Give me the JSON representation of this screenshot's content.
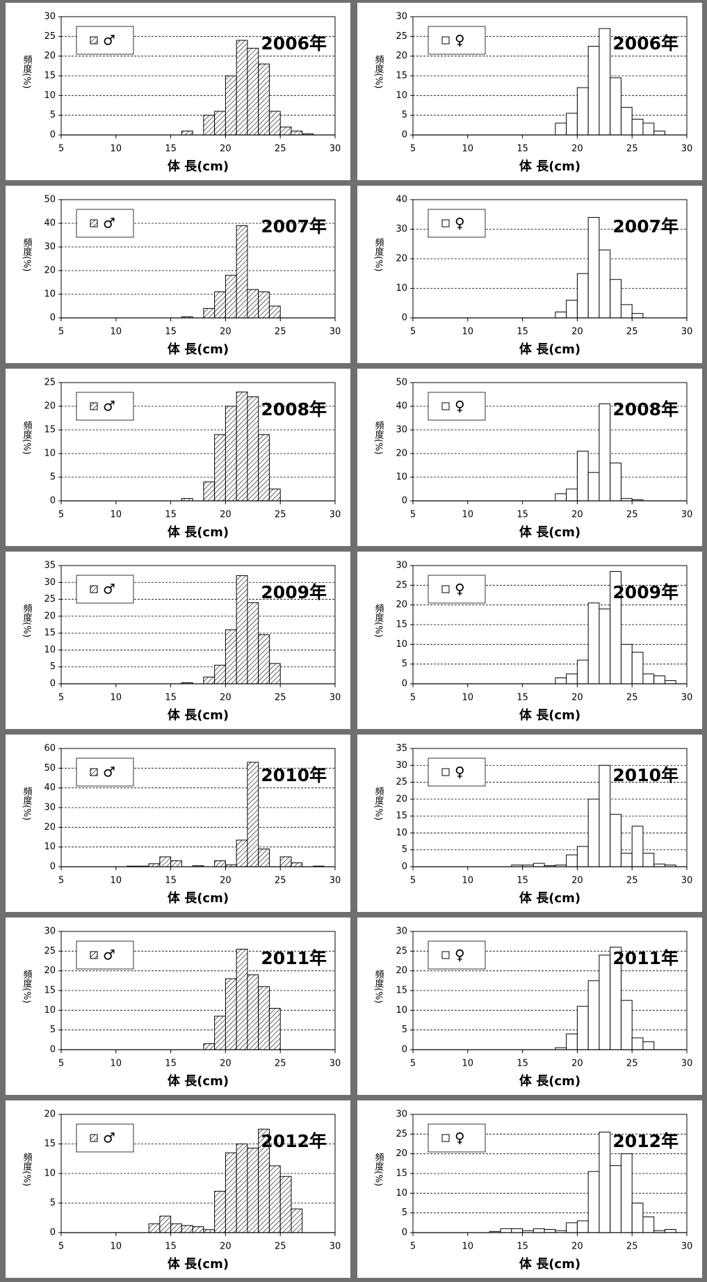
{
  "chart_data": [
    {
      "type": "histogram",
      "annotation": "2006年",
      "xlabel": "体 長(cm)",
      "ylabel": "頻度(%)",
      "bins": [
        16,
        17,
        18,
        19,
        20,
        21,
        22,
        23,
        24,
        25,
        26,
        27,
        28
      ],
      "series": [
        {
          "name": "♂",
          "color": "#ffffff",
          "hatch": true,
          "values": [
            1,
            0,
            5,
            6,
            15,
            24,
            22,
            18,
            6,
            2,
            1,
            0.3
          ]
        }
      ],
      "xlim": [
        5,
        30
      ],
      "xticks": [
        5,
        10,
        15,
        20,
        25,
        30
      ],
      "ylim": [
        0,
        30
      ],
      "yticks": [
        0,
        5,
        10,
        15,
        20,
        25,
        30
      ],
      "grid": true
    },
    {
      "type": "histogram",
      "annotation": "2006年",
      "xlabel": "体 長(cm)",
      "ylabel": "頻度(%)",
      "bins": [
        18,
        19,
        20,
        21,
        22,
        23,
        24,
        25,
        26,
        27,
        28
      ],
      "series": [
        {
          "name": "♀",
          "color": "#ffffff",
          "hatch": false,
          "values": [
            3,
            5.5,
            12,
            22.5,
            27,
            14.5,
            7,
            4,
            3,
            1
          ]
        }
      ],
      "xlim": [
        5,
        30
      ],
      "xticks": [
        5,
        10,
        15,
        20,
        25,
        30
      ],
      "ylim": [
        0,
        30
      ],
      "yticks": [
        0,
        5,
        10,
        15,
        20,
        25,
        30
      ],
      "grid": true
    },
    {
      "type": "histogram",
      "annotation": "2007年",
      "xlabel": "体 長(cm)",
      "ylabel": "頻度(%)",
      "bins": [
        16,
        17,
        18,
        19,
        20,
        21,
        22,
        23,
        24,
        25
      ],
      "series": [
        {
          "name": "♂",
          "color": "#ffffff",
          "hatch": true,
          "values": [
            0.5,
            0,
            4,
            11,
            18,
            39,
            12,
            11,
            5
          ]
        }
      ],
      "xlim": [
        5,
        30
      ],
      "xticks": [
        5,
        10,
        15,
        20,
        25,
        30
      ],
      "ylim": [
        0,
        50
      ],
      "yticks": [
        0,
        10,
        20,
        30,
        40,
        50
      ],
      "grid": true
    },
    {
      "type": "histogram",
      "annotation": "2007年",
      "xlabel": "体 長(cm)",
      "ylabel": "頻度(%)",
      "bins": [
        18,
        19,
        20,
        21,
        22,
        23,
        24,
        25,
        26
      ],
      "series": [
        {
          "name": "♀",
          "color": "#ffffff",
          "hatch": false,
          "values": [
            2,
            6,
            15,
            34,
            23,
            13,
            4.5,
            1.5
          ]
        }
      ],
      "xlim": [
        5,
        30
      ],
      "xticks": [
        5,
        10,
        15,
        20,
        25,
        30
      ],
      "ylim": [
        0,
        40
      ],
      "yticks": [
        0,
        10,
        20,
        30,
        40
      ],
      "grid": true
    },
    {
      "type": "histogram",
      "annotation": "2008年",
      "xlabel": "体 長(cm)",
      "ylabel": "頻度(%)",
      "bins": [
        16,
        17,
        18,
        19,
        20,
        21,
        22,
        23,
        24,
        25
      ],
      "series": [
        {
          "name": "♂",
          "color": "#ffffff",
          "hatch": true,
          "values": [
            0.5,
            0,
            4,
            14,
            20,
            23,
            22,
            14,
            2.5
          ]
        }
      ],
      "xlim": [
        5,
        30
      ],
      "xticks": [
        5,
        10,
        15,
        20,
        25,
        30
      ],
      "ylim": [
        0,
        25
      ],
      "yticks": [
        0,
        5,
        10,
        15,
        20,
        25
      ],
      "grid": true
    },
    {
      "type": "histogram",
      "annotation": "2008年",
      "xlabel": "体 長(cm)",
      "ylabel": "頻度(%)",
      "bins": [
        18,
        19,
        20,
        21,
        22,
        23,
        24,
        25,
        26
      ],
      "series": [
        {
          "name": "♀",
          "color": "#ffffff",
          "hatch": false,
          "values": [
            3,
            5,
            21,
            12,
            41,
            16,
            1,
            0.5
          ]
        }
      ],
      "xlim": [
        5,
        30
      ],
      "xticks": [
        5,
        10,
        15,
        20,
        25,
        30
      ],
      "ylim": [
        0,
        50
      ],
      "yticks": [
        0,
        10,
        20,
        30,
        40,
        50
      ],
      "grid": true
    },
    {
      "type": "histogram",
      "annotation": "2009年",
      "xlabel": "体 長(cm)",
      "ylabel": "頻度(%)",
      "bins": [
        16,
        17,
        18,
        19,
        20,
        21,
        22,
        23,
        24,
        25
      ],
      "series": [
        {
          "name": "♂",
          "color": "#ffffff",
          "hatch": true,
          "values": [
            0.3,
            0,
            2,
            5.5,
            16,
            32,
            24,
            14.5,
            6
          ]
        }
      ],
      "xlim": [
        5,
        30
      ],
      "xticks": [
        5,
        10,
        15,
        20,
        25,
        30
      ],
      "ylim": [
        0,
        35
      ],
      "yticks": [
        0,
        5,
        10,
        15,
        20,
        25,
        30,
        35
      ],
      "grid": true
    },
    {
      "type": "histogram",
      "annotation": "2009年",
      "xlabel": "体 長(cm)",
      "ylabel": "頻度(%)",
      "bins": [
        18,
        19,
        20,
        21,
        22,
        23,
        24,
        25,
        26,
        27,
        28,
        29
      ],
      "series": [
        {
          "name": "♀",
          "color": "#ffffff",
          "hatch": false,
          "values": [
            1.5,
            2.5,
            6,
            20.5,
            19,
            28.5,
            10,
            8,
            2.5,
            2,
            0.8
          ]
        }
      ],
      "xlim": [
        5,
        30
      ],
      "xticks": [
        5,
        10,
        15,
        20,
        25,
        30
      ],
      "ylim": [
        0,
        30
      ],
      "yticks": [
        0,
        5,
        10,
        15,
        20,
        25,
        30
      ],
      "grid": true
    },
    {
      "type": "histogram",
      "annotation": "2010年",
      "xlabel": "体 長(cm)",
      "ylabel": "頻度(%)",
      "bins": [
        11,
        12,
        13,
        14,
        15,
        16,
        17,
        18,
        19,
        20,
        21,
        22,
        23,
        24,
        25,
        26,
        27,
        28,
        29
      ],
      "series": [
        {
          "name": "♂",
          "color": "#ffffff",
          "hatch": true,
          "values": [
            0.3,
            0.3,
            1.5,
            5,
            3,
            0,
            0.5,
            0,
            3,
            1,
            13.5,
            53,
            9,
            0,
            5,
            2,
            0,
            0.3
          ]
        }
      ],
      "xlim": [
        5,
        30
      ],
      "xticks": [
        5,
        10,
        15,
        20,
        25,
        30
      ],
      "ylim": [
        0,
        60
      ],
      "yticks": [
        0,
        10,
        20,
        30,
        40,
        50,
        60
      ],
      "grid": true
    },
    {
      "type": "histogram",
      "annotation": "2010年",
      "xlabel": "体 長(cm)",
      "ylabel": "頻度(%)",
      "bins": [
        14,
        15,
        16,
        17,
        18,
        19,
        20,
        21,
        22,
        23,
        24,
        25,
        26,
        27,
        28,
        29
      ],
      "series": [
        {
          "name": "♀",
          "color": "#ffffff",
          "hatch": false,
          "values": [
            0.5,
            0.5,
            1,
            0.3,
            0.5,
            3.5,
            6,
            20,
            30,
            15.5,
            4,
            12,
            4,
            0.8,
            0.5
          ]
        }
      ],
      "xlim": [
        5,
        30
      ],
      "xticks": [
        5,
        10,
        15,
        20,
        25,
        30
      ],
      "ylim": [
        0,
        35
      ],
      "yticks": [
        0,
        5,
        10,
        15,
        20,
        25,
        30,
        35
      ],
      "grid": true
    },
    {
      "type": "histogram",
      "annotation": "2011年",
      "xlabel": "体 長(cm)",
      "ylabel": "頻度(%)",
      "bins": [
        18,
        19,
        20,
        21,
        22,
        23,
        24,
        25
      ],
      "series": [
        {
          "name": "♂",
          "color": "#ffffff",
          "hatch": true,
          "values": [
            1.5,
            8.5,
            18,
            25.5,
            19,
            16,
            10.5
          ]
        }
      ],
      "xlim": [
        5,
        30
      ],
      "xticks": [
        5,
        10,
        15,
        20,
        25,
        30
      ],
      "ylim": [
        0,
        30
      ],
      "yticks": [
        0,
        5,
        10,
        15,
        20,
        25,
        30
      ],
      "grid": true
    },
    {
      "type": "histogram",
      "annotation": "2011年",
      "xlabel": "体 長(cm)",
      "ylabel": "頻度(%)",
      "bins": [
        18,
        19,
        20,
        21,
        22,
        23,
        24,
        25,
        26,
        27
      ],
      "series": [
        {
          "name": "♀",
          "color": "#ffffff",
          "hatch": false,
          "values": [
            0.5,
            4,
            11,
            17.5,
            24,
            26,
            12.5,
            3,
            2
          ]
        }
      ],
      "xlim": [
        5,
        30
      ],
      "xticks": [
        5,
        10,
        15,
        20,
        25,
        30
      ],
      "ylim": [
        0,
        30
      ],
      "yticks": [
        0,
        5,
        10,
        15,
        20,
        25,
        30
      ],
      "grid": true
    },
    {
      "type": "histogram",
      "annotation": "2012年",
      "xlabel": "体 長(cm)",
      "ylabel": "頻度(%)",
      "bins": [
        13,
        14,
        15,
        16,
        17,
        18,
        19,
        20,
        21,
        22,
        23,
        24,
        25,
        26,
        27
      ],
      "series": [
        {
          "name": "♂",
          "color": "#ffffff",
          "hatch": true,
          "values": [
            1.5,
            2.8,
            1.5,
            1.2,
            1,
            0.5,
            7,
            13.5,
            15,
            14.3,
            17.5,
            11.3,
            9.5,
            4
          ]
        }
      ],
      "xlim": [
        5,
        30
      ],
      "xticks": [
        5,
        10,
        15,
        20,
        25,
        30
      ],
      "ylim": [
        0,
        20
      ],
      "yticks": [
        0,
        5,
        10,
        15,
        20
      ],
      "grid": true
    },
    {
      "type": "histogram",
      "annotation": "2012年",
      "xlabel": "体 長(cm)",
      "ylabel": "頻度(%)",
      "bins": [
        12,
        13,
        14,
        15,
        16,
        17,
        18,
        19,
        20,
        21,
        22,
        23,
        24,
        25,
        26,
        27,
        28,
        29
      ],
      "series": [
        {
          "name": "♀",
          "color": "#ffffff",
          "hatch": false,
          "values": [
            0.3,
            1,
            1,
            0.5,
            1,
            0.8,
            0.5,
            2.5,
            3,
            15.5,
            25.5,
            17,
            20,
            7.5,
            4,
            0.5,
            0.8
          ]
        }
      ],
      "xlim": [
        5,
        30
      ],
      "xticks": [
        5,
        10,
        15,
        20,
        25,
        30
      ],
      "ylim": [
        0,
        30
      ],
      "yticks": [
        0,
        5,
        10,
        15,
        20,
        25,
        30
      ],
      "grid": true
    }
  ]
}
